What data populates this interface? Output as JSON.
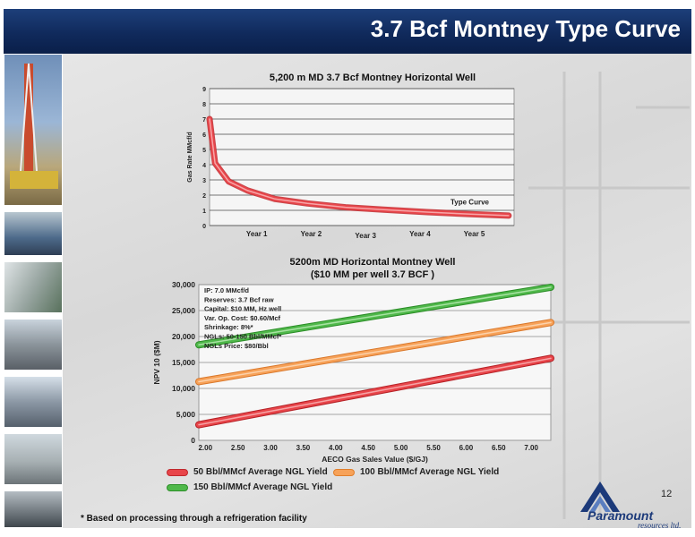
{
  "slide": {
    "title": "3.7 Bcf Montney Type Curve",
    "page_number": "12",
    "footnote": "* Based on processing through a refrigeration facility",
    "logo_text": "Paramount",
    "logo_subtext": "resources ltd."
  },
  "colors": {
    "title_bar": "#102a5c",
    "type_curve": "#e8454a",
    "series_50": "#e8454a",
    "series_100": "#f7a259",
    "series_150": "#4fb84a"
  },
  "chart_data": [
    {
      "type": "line",
      "title": "5,200 m MD 3.7 Bcf Montney Horizontal Well",
      "xlabel": "",
      "ylabel": "Gas Rate MMcf/d",
      "ylim": [
        0,
        9
      ],
      "yticks": [
        "0",
        "1",
        "2",
        "3",
        "4",
        "5",
        "6",
        "7",
        "8",
        "9"
      ],
      "xlim": [
        0,
        5.6
      ],
      "xticks": [
        "Year 1",
        "Year 2",
        "Year 3",
        "Year 4",
        "Year 5"
      ],
      "grid": true,
      "annotation": "Type Curve",
      "series": [
        {
          "name": "Type Curve",
          "x": [
            0,
            0.1,
            0.35,
            0.7,
            1.2,
            1.8,
            2.5,
            3.2,
            4.0,
            4.8,
            5.5
          ],
          "y": [
            7.0,
            4.1,
            2.9,
            2.3,
            1.75,
            1.45,
            1.2,
            1.05,
            0.88,
            0.75,
            0.65
          ]
        }
      ]
    },
    {
      "type": "line",
      "title": "5200m MD Horizontal Montney Well",
      "subtitle": "($10 MM per well 3.7 BCF )",
      "xlabel": "AECO Gas Sales Value ($/GJ)",
      "ylabel": "NPV 10 ($M)",
      "xlim": [
        1.9,
        7.3
      ],
      "ylim": [
        0,
        30000
      ],
      "xticks": [
        "2.00",
        "2.50",
        "3.00",
        "3.50",
        "4.00",
        "4.50",
        "5.00",
        "5.50",
        "6.00",
        "6.50",
        "7.00"
      ],
      "yticks": [
        "0",
        "5,000",
        "10,000",
        "15,000",
        "20,000",
        "25,000",
        "30,000"
      ],
      "grid": true,
      "annotations": [
        "IP: 7.0 MMcf/d",
        "Reserves: 3.7 Bcf raw",
        "Capital: $10 MM, Hz well",
        "Var. Op. Cost: $0.60/Mcf",
        "Shrinkage: 8%*",
        "NGLs: 50-150 Bbl/MMcf*",
        "NGLs Price: $80/Bbl"
      ],
      "series": [
        {
          "name": "50 Bbl/MMcf Average NGL Yield",
          "x": [
            1.9,
            7.3
          ],
          "y": [
            3000,
            15800
          ]
        },
        {
          "name": "100 Bbl/MMcf Average NGL Yield",
          "x": [
            1.9,
            7.3
          ],
          "y": [
            11300,
            22700
          ]
        },
        {
          "name": "150 Bbl/MMcf Average NGL Yield",
          "x": [
            1.9,
            7.3
          ],
          "y": [
            18400,
            29500
          ]
        }
      ]
    }
  ]
}
